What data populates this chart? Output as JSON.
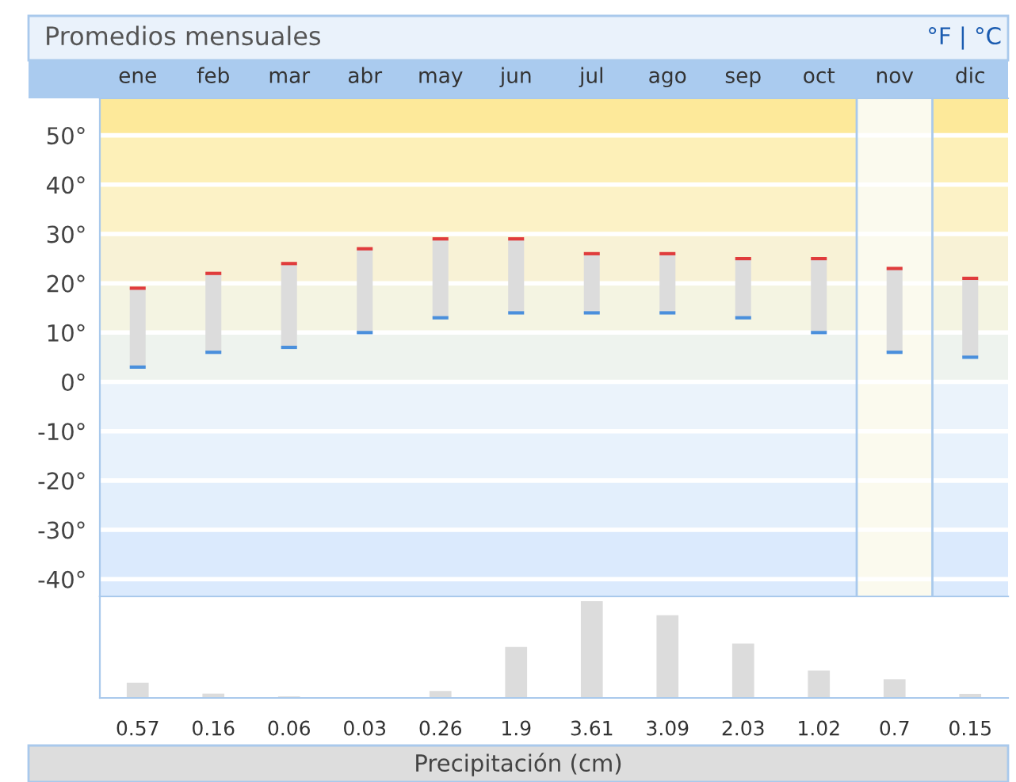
{
  "chart_data": [
    {
      "type": "bar",
      "title": "Promedios mensuales",
      "annotations": [
        "°F | °C"
      ],
      "categories": [
        "ene",
        "feb",
        "mar",
        "abr",
        "may",
        "jun",
        "jul",
        "ago",
        "sep",
        "oct",
        "nov",
        "dic"
      ],
      "base": [
        3,
        6,
        7,
        10,
        13,
        14,
        14,
        14,
        13,
        10,
        6,
        5
      ],
      "values": [
        16,
        16,
        17,
        17,
        16,
        15,
        12,
        12,
        12,
        15,
        17,
        16
      ],
      "color": "#dcdcdc",
      "ylim": [
        -43.5,
        57.5
      ],
      "yticks": [
        {
          "value": -40,
          "label": "-40°"
        },
        {
          "value": -30,
          "label": "-30°"
        },
        {
          "value": -20,
          "label": "-20°"
        },
        {
          "value": -10,
          "label": "-10°"
        },
        {
          "value": 0,
          "label": "0°"
        },
        {
          "value": 10,
          "label": "10°"
        },
        {
          "value": 20,
          "label": "20°"
        },
        {
          "value": 30,
          "label": "30°"
        },
        {
          "value": 40,
          "label": "40°"
        },
        {
          "value": 50,
          "label": "50°"
        }
      ],
      "grid": "y",
      "bands": [
        {
          "axis": "y",
          "from": 50,
          "to": 57.5,
          "color": "#fde99a"
        },
        {
          "axis": "y",
          "from": 40,
          "to": 50,
          "color": "#fdf0b8"
        },
        {
          "axis": "y",
          "from": 30,
          "to": 40,
          "color": "#fcf2c6"
        },
        {
          "axis": "y",
          "from": 20,
          "to": 30,
          "color": "#f8f2d6"
        },
        {
          "axis": "y",
          "from": 10,
          "to": 20,
          "color": "#f4f4e2"
        },
        {
          "axis": "y",
          "from": 0,
          "to": 10,
          "color": "#eef3ee"
        },
        {
          "axis": "y",
          "from": -10,
          "to": 0,
          "color": "#ebf3fb"
        },
        {
          "axis": "y",
          "from": -20,
          "to": -10,
          "color": "#e8f2fc"
        },
        {
          "axis": "y",
          "from": -30,
          "to": -20,
          "color": "#e3effc"
        },
        {
          "axis": "y",
          "from": -43.5,
          "to": -30,
          "color": "#dbeafd"
        },
        {
          "axis": "x",
          "from": "nov",
          "to": "nov",
          "color": "#fbfaee"
        }
      ]
    },
    {
      "type": "bar",
      "xlabel": "Precipitación (cm)",
      "categories": [
        null,
        null,
        null,
        null,
        null,
        null,
        null,
        null,
        null,
        null,
        null,
        null
      ],
      "values": [
        0.57,
        0.16,
        0.06,
        0.03,
        0.26,
        1.9,
        3.61,
        3.09,
        2.03,
        1.02,
        0.7,
        0.15
      ],
      "color": "#dcdcdc",
      "data_labels": true,
      "tick_labels": false
    }
  ]
}
